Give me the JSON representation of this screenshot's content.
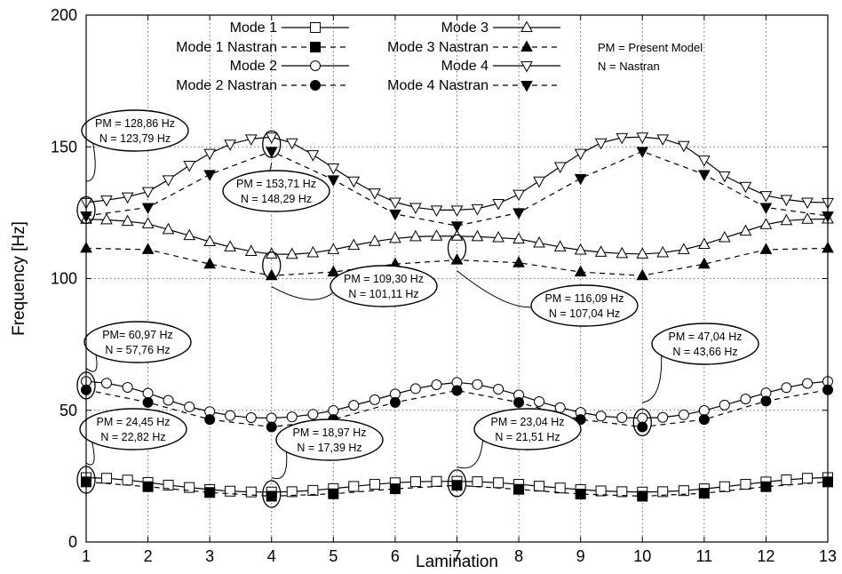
{
  "chart_data": {
    "type": "line",
    "xlabel": "Lamination",
    "ylabel": "Frequency [Hz]",
    "xlim": [
      1,
      13
    ],
    "ylim": [
      0,
      200
    ],
    "x_ticks": [
      "1",
      "2",
      "3",
      "4",
      "5",
      "6",
      "7",
      "8",
      "9",
      "10",
      "11",
      "12",
      "13"
    ],
    "y_ticks": [
      "0",
      "50",
      "100",
      "150",
      "200"
    ],
    "grid": true,
    "legend_position": "top",
    "legend_note": [
      "PM = Present Model",
      "N = Nastran"
    ],
    "series": [
      {
        "name": "Mode 1",
        "color": "#000000",
        "marker": "square-open",
        "dash": false,
        "x": [
          1,
          1.33,
          1.67,
          2,
          2.33,
          2.67,
          3,
          3.33,
          3.67,
          4,
          4.33,
          4.67,
          5,
          5.33,
          5.67,
          6,
          6.33,
          6.67,
          7,
          7.33,
          7.67,
          8,
          8.33,
          8.67,
          9,
          9.33,
          9.67,
          10,
          10.33,
          10.67,
          11,
          11.33,
          11.67,
          12,
          12.33,
          12.67,
          13
        ],
        "y": [
          24.45,
          24.2,
          23.5,
          22.6,
          21.6,
          20.7,
          19.9,
          19.3,
          19.0,
          18.97,
          19.1,
          19.6,
          20.3,
          21.1,
          21.9,
          22.5,
          22.9,
          23.0,
          23.04,
          22.9,
          22.5,
          21.9,
          21.2,
          20.5,
          19.9,
          19.4,
          19.1,
          18.97,
          19.1,
          19.5,
          20.2,
          21.0,
          21.9,
          22.8,
          23.6,
          24.2,
          24.45
        ]
      },
      {
        "name": "Mode 1 Nastran",
        "color": "#000000",
        "marker": "square-filled",
        "dash": true,
        "x": [
          1,
          2,
          3,
          4,
          5,
          6,
          7,
          8,
          9,
          10,
          11,
          12,
          13
        ],
        "y": [
          22.82,
          21.0,
          18.8,
          17.39,
          18.3,
          20.2,
          21.51,
          20.0,
          18.2,
          17.39,
          18.5,
          21.0,
          22.82
        ]
      },
      {
        "name": "Mode 2",
        "color": "#000000",
        "marker": "circle-open",
        "dash": false,
        "x": [
          1,
          1.33,
          1.67,
          2,
          2.33,
          2.67,
          3,
          3.33,
          3.67,
          4,
          4.33,
          4.67,
          5,
          5.33,
          5.67,
          6,
          6.33,
          6.67,
          7,
          7.33,
          7.67,
          8,
          8.33,
          8.67,
          9,
          9.33,
          9.67,
          10,
          10.33,
          10.67,
          11,
          11.33,
          11.67,
          12,
          12.33,
          12.67,
          13
        ],
        "y": [
          60.97,
          60.3,
          58.7,
          56.5,
          53.8,
          51.3,
          49.5,
          48.0,
          47.2,
          47.04,
          47.5,
          48.5,
          49.9,
          51.9,
          54.0,
          56.2,
          58.2,
          59.7,
          60.6,
          59.8,
          58.0,
          55.8,
          53.3,
          51.0,
          49.2,
          47.8,
          47.2,
          47.04,
          47.3,
          48.3,
          49.9,
          52.0,
          54.3,
          56.6,
          58.6,
          60.2,
          60.97
        ]
      },
      {
        "name": "Mode 2 Nastran",
        "color": "#000000",
        "marker": "circle-filled",
        "dash": true,
        "x": [
          1,
          2,
          3,
          4,
          5,
          6,
          7,
          8,
          9,
          10,
          11,
          12,
          13
        ],
        "y": [
          57.76,
          53.0,
          46.5,
          43.66,
          46.5,
          53.0,
          57.5,
          53.0,
          46.5,
          43.66,
          46.5,
          53.5,
          57.76
        ]
      },
      {
        "name": "Mode 3",
        "color": "#000000",
        "marker": "triangle-up-open",
        "dash": false,
        "x": [
          1,
          1.33,
          1.67,
          2,
          2.33,
          2.67,
          3,
          3.33,
          3.67,
          4,
          4.33,
          4.67,
          5,
          5.33,
          5.67,
          6,
          6.33,
          6.67,
          7,
          7.33,
          7.67,
          8,
          8.33,
          8.67,
          9,
          9.33,
          9.67,
          10,
          10.33,
          10.67,
          11,
          11.33,
          11.67,
          12,
          12.33,
          12.67,
          13
        ],
        "y": [
          122.5,
          122.3,
          121.7,
          120.8,
          118.6,
          116.3,
          114.0,
          112.0,
          110.3,
          109.3,
          109.2,
          109.8,
          111.0,
          112.6,
          114.1,
          115.2,
          115.9,
          116.1,
          116.09,
          115.9,
          115.5,
          115.0,
          113.5,
          112.0,
          110.8,
          110.0,
          109.5,
          109.3,
          109.8,
          111.0,
          113.0,
          115.5,
          118.0,
          120.5,
          122.0,
          122.5,
          122.6
        ]
      },
      {
        "name": "Mode 3 Nastran",
        "color": "#000000",
        "marker": "triangle-up-filled",
        "dash": true,
        "x": [
          1,
          2,
          3,
          4,
          5,
          6,
          7,
          8,
          9,
          10,
          11,
          12,
          13
        ],
        "y": [
          111.5,
          111.0,
          105.5,
          101.11,
          102.5,
          105.5,
          107.04,
          106.0,
          102.5,
          101.11,
          105.5,
          111.0,
          111.5
        ]
      },
      {
        "name": "Mode 4",
        "color": "#000000",
        "marker": "triangle-down-open",
        "dash": false,
        "x": [
          1,
          1.33,
          1.67,
          2,
          2.33,
          2.67,
          3,
          3.33,
          3.67,
          4,
          4.33,
          4.67,
          5,
          5.33,
          5.67,
          6,
          6.33,
          6.67,
          7,
          7.33,
          7.67,
          8,
          8.33,
          8.67,
          9,
          9.33,
          9.67,
          10,
          10.33,
          10.67,
          11,
          11.33,
          11.67,
          12,
          12.33,
          12.67,
          13
        ],
        "y": [
          128.86,
          129.8,
          131.0,
          133.0,
          137.5,
          143.0,
          147.5,
          151.0,
          153.0,
          153.71,
          151.5,
          147.0,
          142.0,
          137.0,
          132.5,
          129.0,
          127.0,
          126.0,
          126.0,
          126.5,
          128.5,
          132.0,
          137.0,
          142.5,
          147.5,
          151.5,
          153.5,
          153.71,
          153.0,
          150.5,
          145.0,
          139.0,
          135.0,
          131.5,
          130.0,
          129.0,
          128.86
        ]
      },
      {
        "name": "Mode 4 Nastran",
        "color": "#000000",
        "marker": "triangle-down-filled",
        "dash": true,
        "x": [
          1,
          2,
          3,
          4,
          5,
          6,
          7,
          8,
          9,
          10,
          11,
          12,
          13
        ],
        "y": [
          123.79,
          127.0,
          139.5,
          148.29,
          137.5,
          124.5,
          120.0,
          125.0,
          138.0,
          148.29,
          139.5,
          127.0,
          123.79
        ]
      }
    ],
    "annotations": [
      {
        "pm": "PM = 128,86 Hz",
        "n": "N = 123,79 Hz",
        "x": 1,
        "y": 126
      },
      {
        "pm": "PM = 153,71 Hz",
        "n": "N = 148,29 Hz",
        "x": 4,
        "y": 151
      },
      {
        "pm": "PM = 109,30 Hz",
        "n": "N = 101,11 Hz",
        "x": 4,
        "y": 105
      },
      {
        "pm": "PM = 116,09 Hz",
        "n": "N = 107,04 Hz",
        "x": 7,
        "y": 111.5
      },
      {
        "pm": "PM= 60,97 Hz",
        "n": "N = 57,76 Hz",
        "x": 1,
        "y": 59.4
      },
      {
        "pm": "PM = 47,04 Hz",
        "n": "N = 43,66 Hz",
        "x": 10,
        "y": 45.4
      },
      {
        "pm": "PM = 24,45 Hz",
        "n": "N = 22,82 Hz",
        "x": 1,
        "y": 23.6
      },
      {
        "pm": "PM = 18,97 Hz",
        "n": "N = 17,39 Hz",
        "x": 4,
        "y": 18.2
      },
      {
        "pm": "PM = 23,04 Hz",
        "n": "N = 21,51 Hz",
        "x": 7,
        "y": 22.3
      }
    ]
  }
}
